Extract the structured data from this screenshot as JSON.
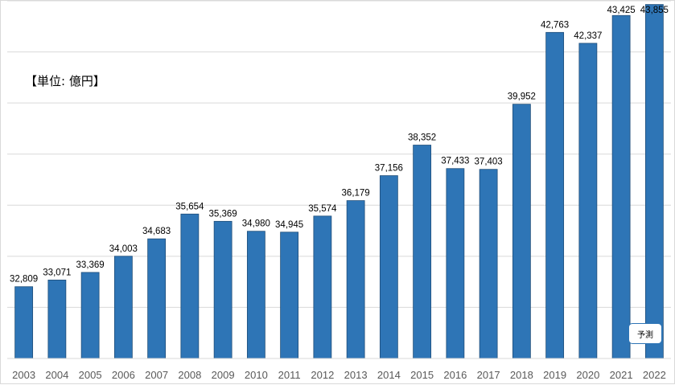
{
  "unit_label": "【単位: 億円】",
  "forecast_label": "予測",
  "colors": {
    "bar": "#2e75b6",
    "bar_edge": "#1f4e79",
    "grid": "#d9d9d9",
    "axis_text": "#595959"
  },
  "chart_data": {
    "type": "bar",
    "categories": [
      "2003",
      "2004",
      "2005",
      "2006",
      "2007",
      "2008",
      "2009",
      "2010",
      "2011",
      "2012",
      "2013",
      "2014",
      "2015",
      "2016",
      "2017",
      "2018",
      "2019",
      "2020",
      "2021",
      "2022"
    ],
    "values": [
      32809,
      33071,
      33369,
      34003,
      34683,
      35654,
      35369,
      34980,
      34945,
      35574,
      36179,
      37156,
      38352,
      37433,
      37403,
      39952,
      42763,
      42337,
      43425,
      43855
    ],
    "value_labels": [
      "32,809",
      "33,071",
      "33,369",
      "34,003",
      "34,683",
      "35,654",
      "35,369",
      "34,980",
      "34,945",
      "35,574",
      "36,179",
      "37,156",
      "38,352",
      "37,433",
      "37,403",
      "39,952",
      "42,763",
      "42,337",
      "43,425",
      "43,855"
    ],
    "title": "",
    "xlabel": "",
    "ylabel": "",
    "ylim": [
      30000,
      44000
    ],
    "grid": true,
    "legend": "none"
  }
}
